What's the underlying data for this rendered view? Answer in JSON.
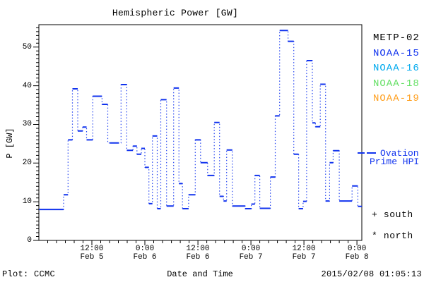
{
  "header": {
    "title": "Hemispheric Power [GW]"
  },
  "axes": {
    "ylabel": "P [GW]",
    "xlabel": "Date and Time",
    "y_ticks": [
      0,
      10,
      20,
      30,
      40,
      50
    ],
    "x_ticks": [
      {
        "hour": 12,
        "time": "12:00",
        "date": "Feb 5"
      },
      {
        "hour": 24,
        "time": "0:00",
        "date": "Feb 6"
      },
      {
        "hour": 36,
        "time": "12:00",
        "date": "Feb 6"
      },
      {
        "hour": 48,
        "time": "0:00",
        "date": "Feb 7"
      },
      {
        "hour": 60,
        "time": "12:00",
        "date": "Feb 7"
      },
      {
        "hour": 72,
        "time": "0:00",
        "date": "Feb 8"
      }
    ]
  },
  "legend": {
    "satellites": [
      {
        "label": "METP-02",
        "color": "#000000"
      },
      {
        "label": "NOAA-15",
        "color": "#1133ee"
      },
      {
        "label": "NOAA-16",
        "color": "#00aaee"
      },
      {
        "label": "NOAA-18",
        "color": "#66e066"
      },
      {
        "label": "NOAA-19",
        "color": "#ffa020"
      }
    ],
    "model": {
      "label_line1": "Ovation",
      "label_line2": "Prime HPI",
      "color": "#1133ee"
    },
    "south": {
      "marker": "+",
      "label": "south"
    },
    "north": {
      "marker": "*",
      "label": "north"
    }
  },
  "footer": {
    "left": "Plot: CCMC",
    "right": "2015/02/08 01:05:13"
  },
  "chart_data": {
    "type": "line",
    "style": "dotted-step-with-dash-markers",
    "title": "Hemispheric Power [GW]",
    "xlabel": "Date and Time",
    "ylabel": "P [GW]",
    "series_name": "Ovation Prime HPI",
    "color": "#1133ee",
    "x_unit": "hours since 2015-02-05 00:00",
    "xlim": [
      0,
      73.1
    ],
    "ylim": [
      0,
      55.8
    ],
    "grid": false,
    "legend_position": "right-outside",
    "x_major_every_hours": 12,
    "x_minor_every_hours": 2,
    "y_major_every": 10,
    "y_minor_every": 1,
    "steps": [
      [
        0,
        8
      ],
      [
        5.6,
        11.8
      ],
      [
        6.6,
        26
      ],
      [
        7.6,
        39.2
      ],
      [
        8.8,
        28.3
      ],
      [
        9.9,
        29.3
      ],
      [
        10.8,
        26
      ],
      [
        12.2,
        37.3
      ],
      [
        14.3,
        35.2
      ],
      [
        15.6,
        25.2
      ],
      [
        18.6,
        40.3
      ],
      [
        19.9,
        23.3
      ],
      [
        21.3,
        24.4
      ],
      [
        22.2,
        22.3
      ],
      [
        23.2,
        23.8
      ],
      [
        24,
        18.9
      ],
      [
        24.9,
        9.5
      ],
      [
        25.7,
        27
      ],
      [
        26.8,
        8.2
      ],
      [
        27.6,
        36.4
      ],
      [
        28.9,
        8.9
      ],
      [
        30.5,
        39.4
      ],
      [
        31.7,
        14.7
      ],
      [
        32.5,
        8.2
      ],
      [
        33.9,
        11.8
      ],
      [
        35.4,
        26
      ],
      [
        36.6,
        20.1
      ],
      [
        38.2,
        16.8
      ],
      [
        39.7,
        30.5
      ],
      [
        40.9,
        11.4
      ],
      [
        41.8,
        10.2
      ],
      [
        42.5,
        23.4
      ],
      [
        43.8,
        8.9
      ],
      [
        46.7,
        8.2
      ],
      [
        48.1,
        9.4
      ],
      [
        48.9,
        16.8
      ],
      [
        50,
        8.3
      ],
      [
        52.4,
        16.4
      ],
      [
        53.5,
        32.2
      ],
      [
        54.5,
        54.3
      ],
      [
        56.4,
        51.5
      ],
      [
        57.7,
        22.3
      ],
      [
        58.8,
        8.2
      ],
      [
        59.8,
        10.1
      ],
      [
        60.6,
        46.5
      ],
      [
        61.9,
        30.4
      ],
      [
        62.6,
        29.4
      ],
      [
        63.7,
        40.4
      ],
      [
        64.9,
        10.2
      ],
      [
        65.8,
        20.1
      ],
      [
        66.6,
        23.2
      ],
      [
        68,
        10.2
      ],
      [
        70.9,
        14.1
      ],
      [
        72.2,
        8.8
      ]
    ],
    "t_end": 73.1
  }
}
